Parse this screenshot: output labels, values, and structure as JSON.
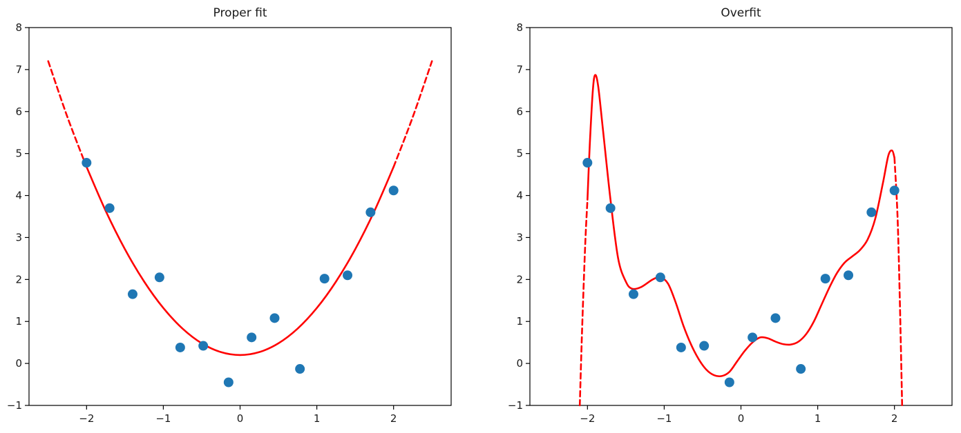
{
  "figure": {
    "background": "#ffffff",
    "axes_color": "#000000",
    "text_color": "#1a1a1a"
  },
  "chart_data": [
    {
      "type": "scatter",
      "title": "Proper fit",
      "xlim": [
        -2.75,
        2.75
      ],
      "ylim": [
        -1,
        8
      ],
      "x_ticks": [
        -2,
        -1,
        0,
        1,
        2
      ],
      "x_tick_labels": [
        "−2",
        "−1",
        "0",
        "1",
        "2"
      ],
      "y_ticks": [
        -1,
        0,
        1,
        2,
        3,
        4,
        5,
        6,
        7,
        8
      ],
      "y_tick_labels": [
        "−1",
        "0",
        "1",
        "2",
        "3",
        "4",
        "5",
        "6",
        "7",
        "8"
      ],
      "grid": false,
      "legend": null,
      "point_color": "#1f77b4",
      "curve_color": "#ff0000",
      "points": [
        [
          -2.0,
          4.78
        ],
        [
          -1.7,
          3.7
        ],
        [
          -1.4,
          1.65
        ],
        [
          -1.05,
          2.05
        ],
        [
          -0.78,
          0.38
        ],
        [
          -0.48,
          0.42
        ],
        [
          -0.15,
          -0.45
        ],
        [
          0.15,
          0.62
        ],
        [
          0.45,
          1.08
        ],
        [
          0.78,
          -0.13
        ],
        [
          1.1,
          2.02
        ],
        [
          1.4,
          2.1
        ],
        [
          1.7,
          3.6
        ],
        [
          2.0,
          4.12
        ]
      ],
      "curve": {
        "description": "quadratic fit y = 0.2 + 1.12x^2, dashed extrapolation beyond data range",
        "segments": [
          {
            "style": "dashed",
            "points": [
              [
                -2.5,
                7.2
              ],
              [
                -2.25,
                5.87
              ],
              [
                -2.0,
                4.68
              ]
            ]
          },
          {
            "style": "solid",
            "points": [
              [
                -2.0,
                4.68
              ],
              [
                -1.75,
                3.63
              ],
              [
                -1.5,
                2.72
              ],
              [
                -1.25,
                1.95
              ],
              [
                -1.0,
                1.32
              ],
              [
                -0.75,
                0.83
              ],
              [
                -0.5,
                0.48
              ],
              [
                -0.25,
                0.27
              ],
              [
                0.0,
                0.2
              ],
              [
                0.25,
                0.27
              ],
              [
                0.5,
                0.48
              ],
              [
                0.75,
                0.83
              ],
              [
                1.0,
                1.32
              ],
              [
                1.25,
                1.95
              ],
              [
                1.5,
                2.72
              ],
              [
                1.75,
                3.63
              ],
              [
                2.0,
                4.68
              ]
            ]
          },
          {
            "style": "dashed",
            "points": [
              [
                2.0,
                4.68
              ],
              [
                2.25,
                5.87
              ],
              [
                2.5,
                7.2
              ]
            ]
          }
        ]
      }
    },
    {
      "type": "scatter",
      "title": "Overfit",
      "xlim": [
        -2.75,
        2.75
      ],
      "ylim": [
        -1,
        8
      ],
      "x_ticks": [
        -2,
        -1,
        0,
        1,
        2
      ],
      "x_tick_labels": [
        "−2",
        "−1",
        "0",
        "1",
        "2"
      ],
      "y_ticks": [
        -1,
        0,
        1,
        2,
        3,
        4,
        5,
        6,
        7,
        8
      ],
      "y_tick_labels": [
        "−1",
        "0",
        "1",
        "2",
        "3",
        "4",
        "5",
        "6",
        "7",
        "8"
      ],
      "grid": false,
      "legend": null,
      "point_color": "#1f77b4",
      "curve_color": "#ff0000",
      "points": [
        [
          -2.0,
          4.78
        ],
        [
          -1.7,
          3.7
        ],
        [
          -1.4,
          1.65
        ],
        [
          -1.05,
          2.05
        ],
        [
          -0.78,
          0.38
        ],
        [
          -0.48,
          0.42
        ],
        [
          -0.15,
          -0.45
        ],
        [
          0.15,
          0.62
        ],
        [
          0.45,
          1.08
        ],
        [
          0.78,
          -0.13
        ],
        [
          1.1,
          2.02
        ],
        [
          1.4,
          2.1
        ],
        [
          1.7,
          3.6
        ],
        [
          2.0,
          4.12
        ]
      ],
      "curve": {
        "description": "high-degree polynomial overfit wiggling through the points, dashed extrapolation plunging off-scale beyond the data range",
        "segments": [
          {
            "style": "dashed",
            "points": [
              [
                -2.1,
                -1.0
              ],
              [
                -2.07,
                0.8
              ],
              [
                -2.03,
                2.8
              ],
              [
                -2.0,
                3.9
              ]
            ]
          },
          {
            "style": "solid",
            "points": [
              [
                -2.0,
                3.9
              ],
              [
                -1.97,
                5.2
              ],
              [
                -1.93,
                6.5
              ],
              [
                -1.9,
                6.87
              ],
              [
                -1.86,
                6.6
              ],
              [
                -1.8,
                5.6
              ],
              [
                -1.7,
                3.9
              ],
              [
                -1.6,
                2.5
              ],
              [
                -1.5,
                1.95
              ],
              [
                -1.42,
                1.78
              ],
              [
                -1.3,
                1.82
              ],
              [
                -1.15,
                2.0
              ],
              [
                -1.05,
                2.05
              ],
              [
                -0.95,
                1.9
              ],
              [
                -0.85,
                1.45
              ],
              [
                -0.75,
                0.9
              ],
              [
                -0.65,
                0.45
              ],
              [
                -0.55,
                0.1
              ],
              [
                -0.45,
                -0.15
              ],
              [
                -0.35,
                -0.28
              ],
              [
                -0.25,
                -0.3
              ],
              [
                -0.15,
                -0.2
              ],
              [
                -0.05,
                0.05
              ],
              [
                0.05,
                0.3
              ],
              [
                0.15,
                0.5
              ],
              [
                0.25,
                0.62
              ],
              [
                0.35,
                0.6
              ],
              [
                0.45,
                0.52
              ],
              [
                0.55,
                0.46
              ],
              [
                0.65,
                0.45
              ],
              [
                0.75,
                0.52
              ],
              [
                0.85,
                0.7
              ],
              [
                0.95,
                1.0
              ],
              [
                1.05,
                1.4
              ],
              [
                1.15,
                1.8
              ],
              [
                1.25,
                2.15
              ],
              [
                1.35,
                2.4
              ],
              [
                1.45,
                2.55
              ],
              [
                1.55,
                2.7
              ],
              [
                1.65,
                2.95
              ],
              [
                1.75,
                3.45
              ],
              [
                1.85,
                4.3
              ],
              [
                1.92,
                4.95
              ],
              [
                1.97,
                5.07
              ],
              [
                2.0,
                4.9
              ]
            ]
          },
          {
            "style": "dashed",
            "points": [
              [
                2.0,
                4.9
              ],
              [
                2.04,
                3.5
              ],
              [
                2.07,
                1.5
              ],
              [
                2.1,
                -1.0
              ]
            ]
          }
        ]
      }
    }
  ]
}
